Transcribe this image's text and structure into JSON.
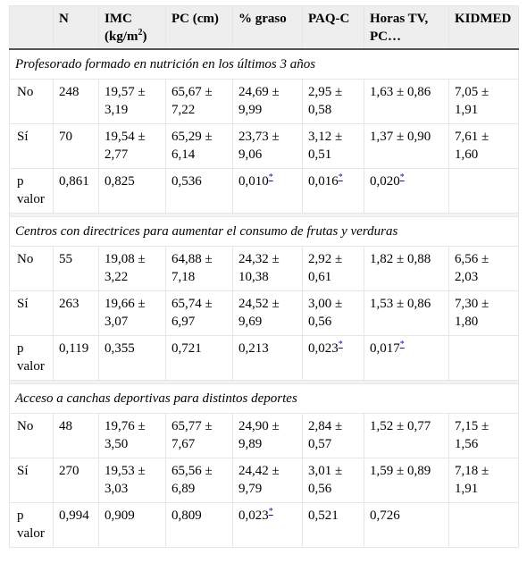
{
  "headers": {
    "blank": "",
    "n": "N",
    "imc": "IMC (kg/m",
    "imc_sup": "2",
    "imc_close": ")",
    "pc": "PC (cm)",
    "grasa": "% graso",
    "paqc": "PAQ-C",
    "tv": "Horas TV, PC…",
    "kidmed": "KIDMED"
  },
  "footnote_mark": "*",
  "sections": [
    {
      "title": "Profesorado formado en nutrición en los últimos 3 años",
      "rows": [
        {
          "label": "No",
          "n": "248",
          "imc": "19,57 ± 3,19",
          "pc": "65,67 ± 7,22",
          "grasa": "24,69 ± 9,99",
          "paqc": "2,95 ± 0,58",
          "tv": "1,63 ± 0,86",
          "kidmed": "7,05 ± 1,91"
        },
        {
          "label": "Sí",
          "n": "70",
          "imc": "19,54 ± 2,77",
          "pc": "65,29 ± 6,14",
          "grasa": "23,73 ± 9,06",
          "paqc": "3,12 ± 0,51",
          "tv": "1,37 ± 0,90",
          "kidmed": "7,61 ± 1,60"
        },
        {
          "label": "p valor",
          "n": "0,861",
          "imc": "0,825",
          "pc": "0,536",
          "grasa": "0,010",
          "paqc": "0,016",
          "tv": "0,020",
          "kidmed": ""
        }
      ]
    },
    {
      "title": "Centros con directrices para aumentar el consumo de frutas y verduras",
      "rows": [
        {
          "label": "No",
          "n": "55",
          "imc": "19,08 ± 3,22",
          "pc": "64,88 ± 7,18",
          "grasa": "24,32 ± 10,38",
          "paqc": "2,92 ± 0,61",
          "tv": "1,82 ± 0,88",
          "kidmed": "6,56 ± 2,03"
        },
        {
          "label": "Sí",
          "n": "263",
          "imc": "19,66 ± 3,07",
          "pc": "65,74 ± 6,97",
          "grasa": "24,52 ± 9,69",
          "paqc": "3,00 ± 0,56",
          "tv": "1,53 ± 0,86",
          "kidmed": "7,30 ± 1,80"
        },
        {
          "label": "p valor",
          "n": "0,119",
          "imc": "0,355",
          "pc": "0,721",
          "grasa": "0,213",
          "paqc": "0,023",
          "tv": "0,017",
          "kidmed": ""
        }
      ]
    },
    {
      "title": "Acceso a canchas deportivas para distintos deportes",
      "rows": [
        {
          "label": "No",
          "n": "48",
          "imc": "19,76 ± 3,50",
          "pc": "65,77 ± 7,67",
          "grasa": "24,90 ± 9,89",
          "paqc": "2,84 ± 0,57",
          "tv": "1,52 ± 0,77",
          "kidmed": "7,15 ± 1,56"
        },
        {
          "label": "Sí",
          "n": "270",
          "imc": "19,53 ± 3,03",
          "pc": "65,56 ± 6,89",
          "grasa": "24,42 ± 9,79",
          "paqc": "3,01 ± 0,56",
          "tv": "1,59 ± 0,89",
          "kidmed": "7,18 ± 1,91"
        },
        {
          "label": "p valor",
          "n": "0,994",
          "imc": "0,909",
          "pc": "0,809",
          "grasa": "0,023",
          "paqc": "0,521",
          "tv": "0,726",
          "kidmed": ""
        }
      ]
    }
  ]
}
